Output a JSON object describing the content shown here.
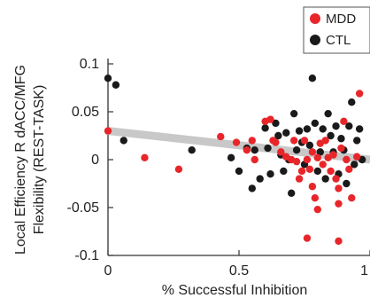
{
  "chart_data": {
    "type": "scatter",
    "xlabel": "% Successful Inhibition",
    "ylabel_lines": [
      "Local Efficiency R dACC/MFG",
      "Flexibility (REST-TASK)"
    ],
    "xlim": [
      0,
      1
    ],
    "ylim": [
      -0.1,
      0.1
    ],
    "x_ticks": [
      0,
      0.5,
      1
    ],
    "x_tick_labels": [
      "0",
      "0.5",
      "1"
    ],
    "y_ticks": [
      -0.1,
      -0.05,
      0,
      0.05,
      0.1
    ],
    "y_tick_labels": [
      "-0.1",
      "-0.05",
      "0",
      "0.05",
      "0.1"
    ],
    "grid": false,
    "legend_position": "top-right",
    "fit_line": {
      "x": [
        0,
        1
      ],
      "y": [
        0.03,
        0.0
      ],
      "color": "#c8c8c8"
    },
    "series": [
      {
        "name": "MDD",
        "color": "#e8262a",
        "points": [
          [
            0.0,
            0.03
          ],
          [
            0.14,
            0.002
          ],
          [
            0.27,
            -0.01
          ],
          [
            0.43,
            0.024
          ],
          [
            0.49,
            0.018
          ],
          [
            0.53,
            0.01
          ],
          [
            0.55,
            0.02
          ],
          [
            0.56,
            0.0
          ],
          [
            0.6,
            0.04
          ],
          [
            0.62,
            0.042
          ],
          [
            0.63,
            0.02
          ],
          [
            0.64,
            0.018
          ],
          [
            0.66,
            0.008
          ],
          [
            0.68,
            0.003
          ],
          [
            0.7,
            0.0
          ],
          [
            0.71,
            0.02
          ],
          [
            0.72,
            -0.002
          ],
          [
            0.73,
            -0.02
          ],
          [
            0.74,
            -0.012
          ],
          [
            0.75,
            0.02
          ],
          [
            0.76,
            0.0
          ],
          [
            0.77,
            -0.01
          ],
          [
            0.78,
            0.008
          ],
          [
            0.78,
            -0.028
          ],
          [
            0.79,
            -0.04
          ],
          [
            0.8,
            0.002
          ],
          [
            0.8,
            -0.052
          ],
          [
            0.81,
            0.017
          ],
          [
            0.82,
            -0.005
          ],
          [
            0.83,
            0.02
          ],
          [
            0.84,
            0.002
          ],
          [
            0.85,
            -0.012
          ],
          [
            0.86,
            0.005
          ],
          [
            0.87,
            -0.02
          ],
          [
            0.88,
            -0.03
          ],
          [
            0.88,
            -0.046
          ],
          [
            0.89,
            0.012
          ],
          [
            0.9,
            0.04
          ],
          [
            0.91,
            0.0
          ],
          [
            0.92,
            -0.01
          ],
          [
            0.93,
            -0.04
          ],
          [
            0.95,
            0.003
          ],
          [
            0.96,
            0.069
          ],
          [
            0.76,
            -0.082
          ],
          [
            0.88,
            -0.085
          ]
        ]
      },
      {
        "name": "CTL",
        "color": "#1a1a1a",
        "points": [
          [
            0.0,
            0.085
          ],
          [
            0.03,
            0.078
          ],
          [
            0.06,
            0.02
          ],
          [
            0.32,
            0.01
          ],
          [
            0.47,
            0.002
          ],
          [
            0.5,
            -0.012
          ],
          [
            0.53,
            0.012
          ],
          [
            0.55,
            -0.03
          ],
          [
            0.56,
            0.01
          ],
          [
            0.58,
            -0.02
          ],
          [
            0.6,
            0.033
          ],
          [
            0.61,
            0.012
          ],
          [
            0.62,
            -0.015
          ],
          [
            0.64,
            0.038
          ],
          [
            0.65,
            0.025
          ],
          [
            0.66,
            0.005
          ],
          [
            0.67,
            -0.012
          ],
          [
            0.68,
            0.028
          ],
          [
            0.69,
            0.0
          ],
          [
            0.7,
            -0.035
          ],
          [
            0.71,
            0.048
          ],
          [
            0.72,
            0.01
          ],
          [
            0.73,
            0.03
          ],
          [
            0.74,
            0.018
          ],
          [
            0.75,
            -0.005
          ],
          [
            0.76,
            0.032
          ],
          [
            0.77,
            0.015
          ],
          [
            0.78,
            0.085
          ],
          [
            0.79,
            0.038
          ],
          [
            0.8,
            -0.012
          ],
          [
            0.81,
            0.008
          ],
          [
            0.82,
            0.032
          ],
          [
            0.83,
            -0.02
          ],
          [
            0.84,
            0.048
          ],
          [
            0.85,
            0.025
          ],
          [
            0.86,
            0.008
          ],
          [
            0.87,
            0.035
          ],
          [
            0.88,
            -0.015
          ],
          [
            0.89,
            0.022
          ],
          [
            0.9,
            0.01
          ],
          [
            0.91,
            -0.025
          ],
          [
            0.92,
            0.035
          ],
          [
            0.93,
            0.06
          ],
          [
            0.94,
            -0.005
          ],
          [
            0.95,
            0.02
          ],
          [
            0.96,
            0.032
          ],
          [
            0.97,
            0.0
          ]
        ]
      }
    ]
  }
}
